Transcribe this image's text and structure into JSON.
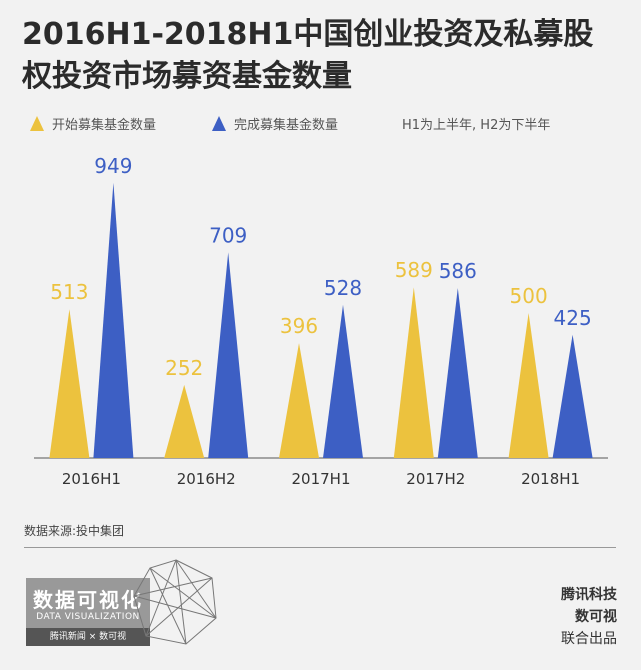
{
  "title": "2016H1-2018H1中国创业投资及私募股权投资市场募资基金数量",
  "legend": {
    "start_label": "开始募集基金数量",
    "complete_label": "完成募集基金数量",
    "note": "H1为上半年, H2为下半年"
  },
  "colors": {
    "start": "#ecc23e",
    "complete": "#3d5fc4"
  },
  "chart_data": {
    "type": "bar",
    "categories": [
      "2016H1",
      "2016H2",
      "2017H1",
      "2017H2",
      "2018H1"
    ],
    "series": [
      {
        "name": "开始募集基金数量",
        "values": [
          513,
          252,
          396,
          589,
          500
        ]
      },
      {
        "name": "完成募集基金数量",
        "values": [
          949,
          709,
          528,
          586,
          425
        ]
      }
    ],
    "ylim": [
      0,
      1000
    ]
  },
  "source": "数据来源:投中集团",
  "logo": {
    "cn": "数据可视化",
    "en": "DATA VISUALIZATION",
    "bar": "腾讯新闻 × 数可视"
  },
  "credits": {
    "line1": "腾讯科技",
    "line2": "数可视",
    "line3": "联合出品"
  }
}
